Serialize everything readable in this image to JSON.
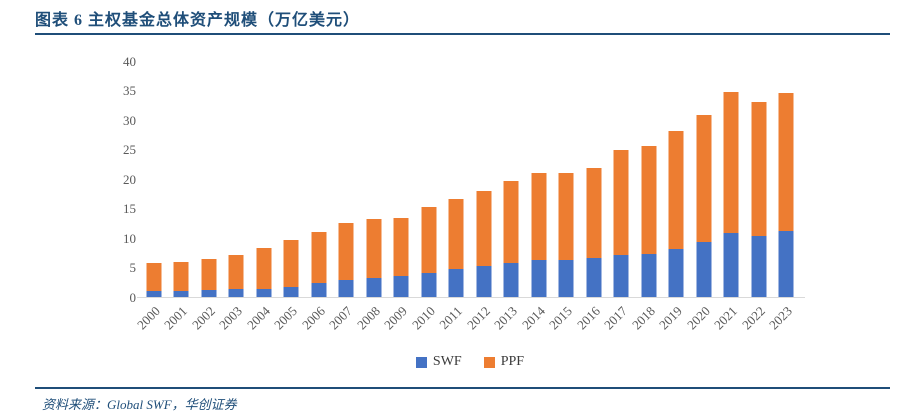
{
  "figure": {
    "title": "图表 6 主权基金总体资产规模（万亿美元）",
    "source_note": "资料来源：Global SWF，华创证券"
  },
  "chart_data": {
    "type": "bar",
    "stacked": true,
    "title": "主权基金总体资产规模（万亿美元）",
    "categories": [
      "2000",
      "2001",
      "2002",
      "2003",
      "2004",
      "2005",
      "2006",
      "2007",
      "2008",
      "2009",
      "2010",
      "2011",
      "2012",
      "2013",
      "2014",
      "2015",
      "2016",
      "2017",
      "2018",
      "2019",
      "2020",
      "2021",
      "2022",
      "2023"
    ],
    "series": [
      {
        "name": "SWF",
        "color": "#4472C4",
        "values": [
          1.1,
          1.1,
          1.2,
          1.3,
          1.4,
          1.7,
          2.4,
          2.9,
          3.3,
          3.5,
          4.1,
          4.7,
          5.2,
          5.8,
          6.3,
          6.3,
          6.6,
          7.2,
          7.3,
          8.2,
          9.3,
          10.9,
          10.4,
          11.2
        ]
      },
      {
        "name": "PPF",
        "color": "#ED7D31",
        "values": [
          4.7,
          4.8,
          5.2,
          5.9,
          6.9,
          8.0,
          8.6,
          9.6,
          9.9,
          9.9,
          11.1,
          11.9,
          12.8,
          13.9,
          14.7,
          14.7,
          15.3,
          17.7,
          18.3,
          19.9,
          21.6,
          23.8,
          22.6,
          23.4
        ]
      }
    ],
    "ylim": [
      0,
      40
    ],
    "y_tick_step": 5,
    "grid": false,
    "legend_position": "bottom",
    "xlabel": "",
    "ylabel": "",
    "accent_color": "#1F4E79",
    "axis_label_color": "#595959",
    "axis_line_color": "#D9D9D9"
  }
}
